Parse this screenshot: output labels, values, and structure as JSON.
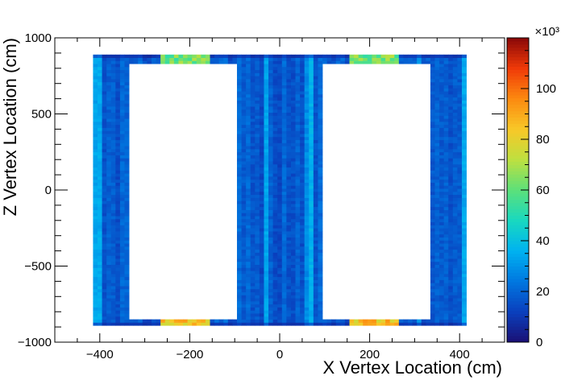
{
  "chart_data": {
    "type": "heatmap",
    "title": "",
    "xlabel": "X Vertex Location (cm)",
    "ylabel": "Z Vertex Location (cm)",
    "xlim": [
      -500,
      500
    ],
    "ylim": [
      -1000,
      1000
    ],
    "x_ticks": [
      -400,
      -200,
      0,
      200,
      400
    ],
    "y_ticks": [
      -1000,
      -500,
      0,
      500,
      1000
    ],
    "x_tick_labels": [
      "−400",
      "−200",
      "0",
      "200",
      "400"
    ],
    "y_tick_labels": [
      "−1000",
      "−500",
      "0",
      "500",
      "1000"
    ],
    "colorbar": {
      "range": [
        0,
        120
      ],
      "ticks": [
        0,
        20,
        40,
        60,
        80,
        100
      ],
      "tick_labels": [
        "0",
        "20",
        "40",
        "60",
        "80",
        "100"
      ],
      "exponent_label": "×10³",
      "colormap": [
        "#1b0f74",
        "#0a3fbd",
        "#0077e0",
        "#00b2f0",
        "#18d8c0",
        "#5ce07a",
        "#bde040",
        "#f8c828",
        "#fc8a10",
        "#f03a08",
        "#8a0808"
      ]
    },
    "grid": false,
    "regions": {
      "occupied_x_range": [
        -415,
        415
      ],
      "occupied_z_range": [
        -890,
        890
      ],
      "bulk_value": 18,
      "empty_windows": [
        {
          "x": [
            -335,
            -95
          ],
          "z": [
            -855,
            835
          ]
        },
        {
          "x": [
            95,
            335
          ],
          "z": [
            -855,
            835
          ]
        }
      ],
      "hot_edges": [
        {
          "x": [
            -265,
            -155
          ],
          "z": [
            835,
            890
          ],
          "value": 62
        },
        {
          "x": [
            155,
            265
          ],
          "z": [
            835,
            890
          ],
          "value": 62
        },
        {
          "x": [
            -265,
            -155
          ],
          "z": [
            -890,
            -855
          ],
          "value": 85
        },
        {
          "x": [
            155,
            265
          ],
          "z": [
            -890,
            -855
          ],
          "value": 85
        }
      ],
      "bright_columns_x": [
        -405,
        -30,
        65,
        310,
        410
      ]
    }
  }
}
